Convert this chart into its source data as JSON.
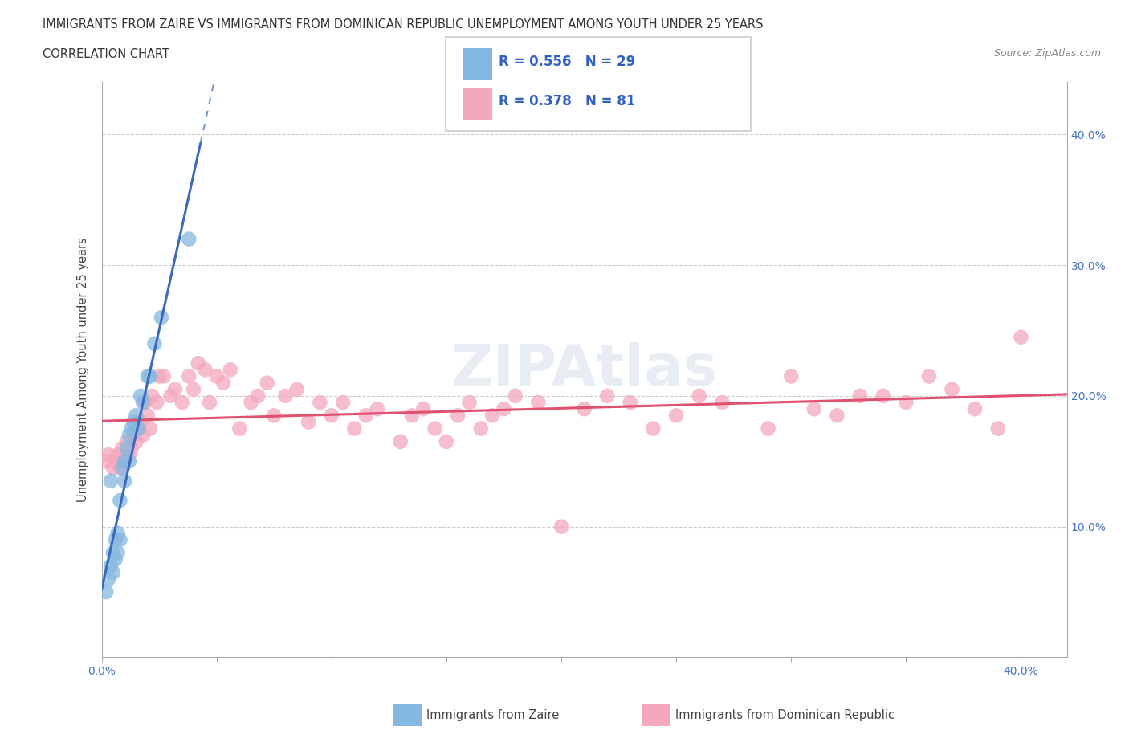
{
  "title_line1": "IMMIGRANTS FROM ZAIRE VS IMMIGRANTS FROM DOMINICAN REPUBLIC UNEMPLOYMENT AMONG YOUTH UNDER 25 YEARS",
  "title_line2": "CORRELATION CHART",
  "source": "Source: ZipAtlas.com",
  "ylabel": "Unemployment Among Youth under 25 years",
  "xlim": [
    0.0,
    0.42
  ],
  "ylim": [
    0.0,
    0.44
  ],
  "zaire_color": "#85b8e0",
  "dominican_color": "#f4a8bc",
  "zaire_line_color": "#3a6abf",
  "dominican_line_color": "#e05070",
  "zaire_points_x": [
    0.002,
    0.003,
    0.004,
    0.004,
    0.005,
    0.005,
    0.006,
    0.006,
    0.007,
    0.007,
    0.008,
    0.008,
    0.009,
    0.01,
    0.01,
    0.011,
    0.012,
    0.012,
    0.013,
    0.014,
    0.015,
    0.016,
    0.017,
    0.018,
    0.02,
    0.021,
    0.023,
    0.026,
    0.038
  ],
  "zaire_points_y": [
    0.05,
    0.06,
    0.07,
    0.135,
    0.065,
    0.08,
    0.075,
    0.09,
    0.08,
    0.095,
    0.09,
    0.12,
    0.145,
    0.135,
    0.15,
    0.16,
    0.15,
    0.17,
    0.175,
    0.18,
    0.185,
    0.175,
    0.2,
    0.195,
    0.215,
    0.215,
    0.24,
    0.26,
    0.32
  ],
  "dominican_points_x": [
    0.002,
    0.003,
    0.005,
    0.006,
    0.007,
    0.008,
    0.009,
    0.01,
    0.011,
    0.012,
    0.013,
    0.014,
    0.015,
    0.016,
    0.017,
    0.018,
    0.019,
    0.02,
    0.021,
    0.022,
    0.024,
    0.025,
    0.027,
    0.03,
    0.032,
    0.035,
    0.038,
    0.04,
    0.042,
    0.045,
    0.047,
    0.05,
    0.053,
    0.056,
    0.06,
    0.065,
    0.068,
    0.072,
    0.075,
    0.08,
    0.085,
    0.09,
    0.095,
    0.1,
    0.105,
    0.11,
    0.115,
    0.12,
    0.13,
    0.135,
    0.14,
    0.145,
    0.15,
    0.155,
    0.16,
    0.165,
    0.17,
    0.175,
    0.18,
    0.19,
    0.2,
    0.21,
    0.22,
    0.23,
    0.24,
    0.25,
    0.26,
    0.27,
    0.29,
    0.3,
    0.31,
    0.32,
    0.33,
    0.34,
    0.35,
    0.36,
    0.37,
    0.38,
    0.39,
    0.4
  ],
  "dominican_points_y": [
    0.15,
    0.155,
    0.145,
    0.15,
    0.155,
    0.145,
    0.16,
    0.15,
    0.165,
    0.155,
    0.16,
    0.17,
    0.165,
    0.175,
    0.18,
    0.17,
    0.195,
    0.185,
    0.175,
    0.2,
    0.195,
    0.215,
    0.215,
    0.2,
    0.205,
    0.195,
    0.215,
    0.205,
    0.225,
    0.22,
    0.195,
    0.215,
    0.21,
    0.22,
    0.175,
    0.195,
    0.2,
    0.21,
    0.185,
    0.2,
    0.205,
    0.18,
    0.195,
    0.185,
    0.195,
    0.175,
    0.185,
    0.19,
    0.165,
    0.185,
    0.19,
    0.175,
    0.165,
    0.185,
    0.195,
    0.175,
    0.185,
    0.19,
    0.2,
    0.195,
    0.1,
    0.19,
    0.2,
    0.195,
    0.175,
    0.185,
    0.2,
    0.195,
    0.175,
    0.215,
    0.19,
    0.185,
    0.2,
    0.2,
    0.195,
    0.215,
    0.205,
    0.19,
    0.175,
    0.245
  ]
}
